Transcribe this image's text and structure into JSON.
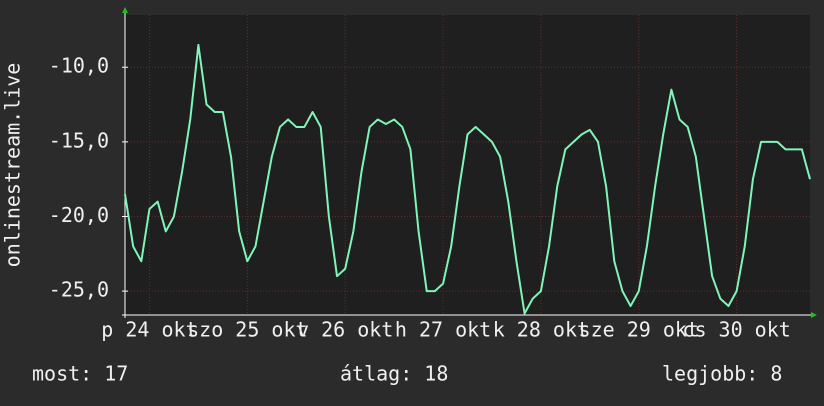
{
  "chart_data": {
    "type": "line",
    "y_label": "onlinestream.live",
    "x": [
      0,
      2,
      4,
      6,
      8,
      10,
      12,
      14,
      16,
      18,
      20,
      22,
      24,
      26,
      28,
      30,
      32,
      34,
      36,
      38,
      40,
      42,
      44,
      46,
      48,
      50,
      52,
      54,
      56,
      58,
      60,
      62,
      64,
      66,
      68,
      70,
      72,
      74,
      76,
      78,
      80,
      82,
      84,
      86,
      88,
      90,
      92,
      94,
      96,
      98,
      100,
      102,
      104,
      106,
      108,
      110,
      112,
      114,
      116,
      118,
      120,
      122,
      124,
      126,
      128,
      130,
      132,
      134,
      136,
      138,
      140,
      142,
      144,
      146,
      148,
      150,
      152,
      154,
      156,
      158,
      160,
      162,
      164,
      166,
      168
    ],
    "series": [
      {
        "name": "onlinestream.live",
        "color": "#7ff5b8",
        "values": [
          -18.5,
          -22,
          -23,
          -19.5,
          -19,
          -21,
          -20,
          -17,
          -13.5,
          -8.5,
          -12.5,
          -13,
          -13,
          -16,
          -21,
          -23,
          -22,
          -19,
          -16,
          -14,
          -13.5,
          -14,
          -14,
          -13,
          -14,
          -20,
          -24,
          -23.5,
          -21,
          -17,
          -14,
          -13.5,
          -13.8,
          -13.5,
          -14,
          -15.5,
          -21,
          -25,
          -25,
          -24.5,
          -22,
          -18,
          -14.5,
          -14,
          -14.5,
          -15,
          -16,
          -19,
          -23,
          -26.5,
          -25.5,
          -25,
          -22,
          -18,
          -15.5,
          -15,
          -14.5,
          -14.2,
          -15,
          -18,
          -23,
          -25,
          -26,
          -25,
          -22,
          -18,
          -14.5,
          -11.5,
          -13.5,
          -14,
          -16,
          -20,
          -24,
          -25.5,
          -26,
          -25,
          -22,
          -17.5,
          -15,
          -15,
          -15,
          -15.5,
          -15.5,
          -15.5,
          -17.5
        ]
      }
    ],
    "xlim": [
      0,
      168
    ],
    "xticks": [
      {
        "value": 6,
        "label": "p 24 okt"
      },
      {
        "value": 30,
        "label": "szo 25 okt"
      },
      {
        "value": 54,
        "label": "v 26 okt"
      },
      {
        "value": 78,
        "label": "h 27 okt"
      },
      {
        "value": 102,
        "label": "k 28 okt"
      },
      {
        "value": 126,
        "label": "sze 29 okt"
      },
      {
        "value": 150,
        "label": "cs 30 okt"
      }
    ],
    "ylim": [
      -26.6,
      -6.5
    ],
    "yticks": [
      {
        "value": -25,
        "label": "-25,0"
      },
      {
        "value": -20,
        "label": "-20,0"
      },
      {
        "value": -15,
        "label": "-15,0"
      },
      {
        "value": -10,
        "label": "-10,0"
      }
    ],
    "grid": true,
    "footer": {
      "current": "most: 17",
      "average": "átlag: 18",
      "best": "legjobb: 8"
    }
  }
}
